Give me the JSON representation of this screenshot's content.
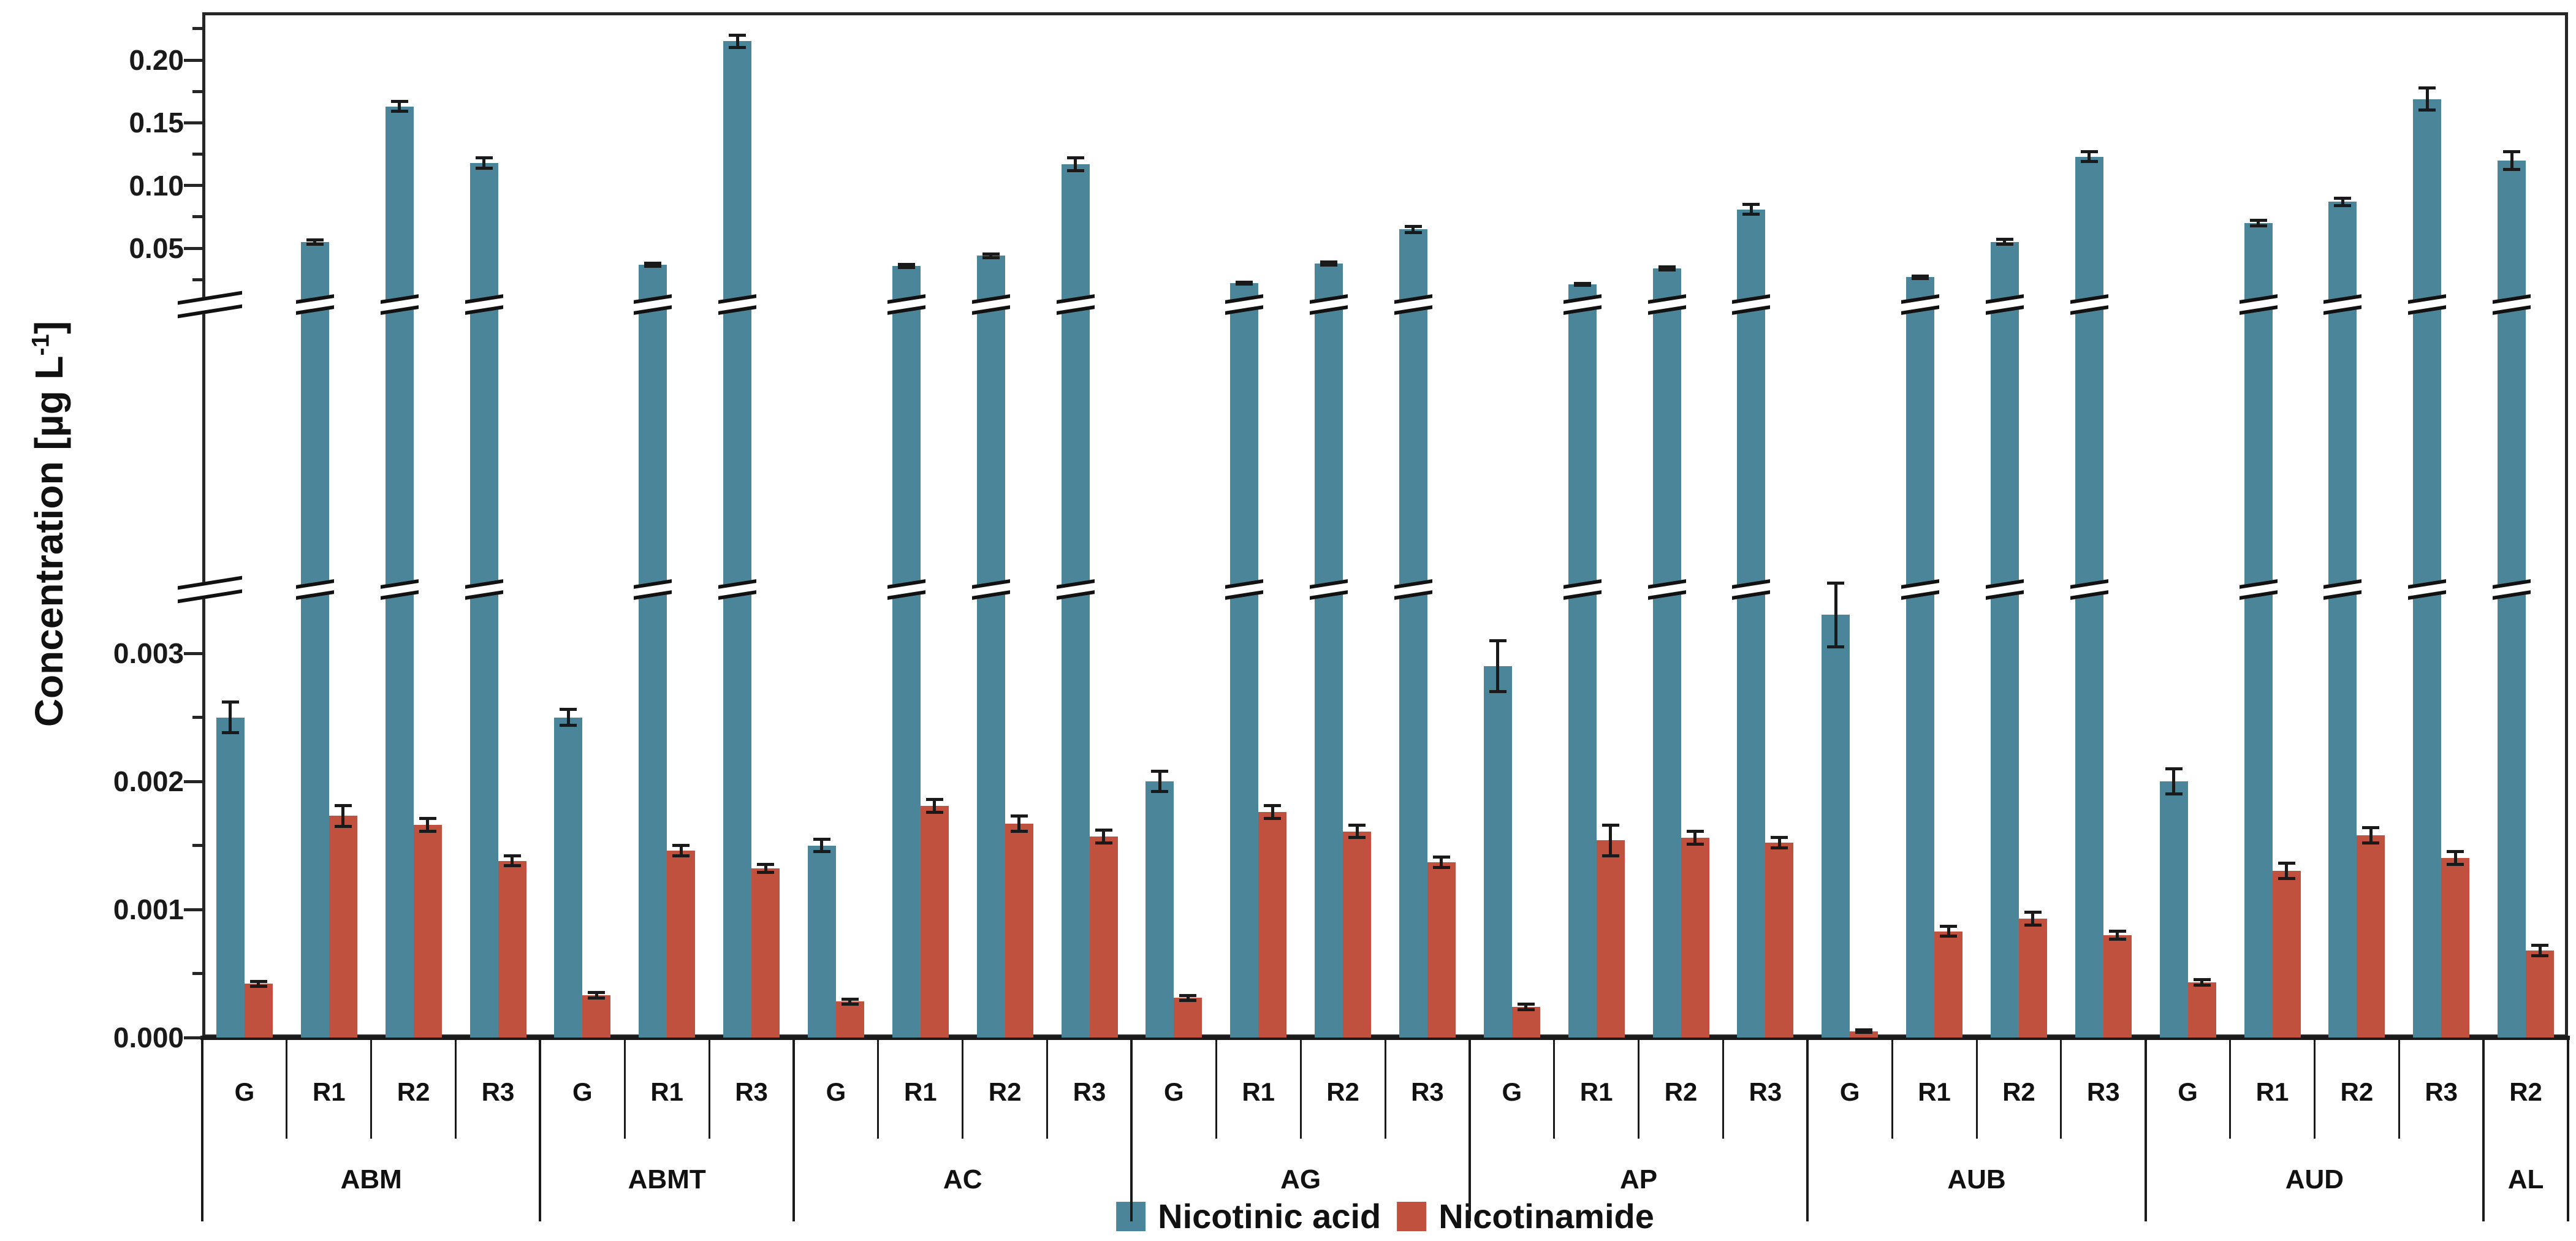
{
  "chart_data": {
    "type": "bar",
    "title": "",
    "ylabel": "Concentration [µg L-1]",
    "y_axis_label_parts": {
      "prefix": "Concentration [µg L",
      "sup": "-1",
      "suffix": "]"
    },
    "legend_position": "bottom-center",
    "grid": false,
    "series": [
      {
        "name": "Nicotinic acid",
        "color": "#4A8599"
      },
      {
        "name": "Nicotinamide",
        "color": "#C0513E"
      }
    ],
    "y_axis_break": {
      "lower_range": [
        0,
        0.0035
      ],
      "upper_range": [
        0.013,
        0.235
      ],
      "lower_ticks": [
        {
          "value": 0.0,
          "label": "0.000"
        },
        {
          "value": 0.001,
          "label": "0.001"
        },
        {
          "value": 0.002,
          "label": "0.002"
        },
        {
          "value": 0.003,
          "label": "0.003"
        }
      ],
      "lower_minor_ticks": [
        0.0005,
        0.0015,
        0.0025
      ],
      "upper_ticks": [
        {
          "value": 0.05,
          "label": "0.05"
        },
        {
          "value": 0.1,
          "label": "0.10"
        },
        {
          "value": 0.15,
          "label": "0.15"
        },
        {
          "value": 0.2,
          "label": "0.20"
        }
      ],
      "upper_minor_ticks": [
        0.025,
        0.075,
        0.125,
        0.175,
        0.225
      ]
    },
    "groups": [
      {
        "name": "ABM",
        "categories": [
          {
            "label": "G",
            "nicotinic_acid": 0.0025,
            "nicotinic_acid_err": 0.00012,
            "nicotinamide": 0.00042,
            "nicotinamide_err": 2e-05
          },
          {
            "label": "R1",
            "nicotinic_acid": 0.055,
            "nicotinic_acid_err": 0.0018,
            "nicotinamide": 0.00173,
            "nicotinamide_err": 8e-05
          },
          {
            "label": "R2",
            "nicotinic_acid": 0.163,
            "nicotinic_acid_err": 0.004,
            "nicotinamide": 0.00166,
            "nicotinamide_err": 5e-05
          },
          {
            "label": "R3",
            "nicotinic_acid": 0.118,
            "nicotinic_acid_err": 0.004,
            "nicotinamide": 0.00138,
            "nicotinamide_err": 4e-05
          }
        ]
      },
      {
        "name": "ABMT",
        "categories": [
          {
            "label": "G",
            "nicotinic_acid": 0.0025,
            "nicotinic_acid_err": 6e-05,
            "nicotinamide": 0.00033,
            "nicotinamide_err": 2e-05
          },
          {
            "label": "R1",
            "nicotinic_acid": 0.037,
            "nicotinic_acid_err": 0.0012,
            "nicotinamide": 0.00146,
            "nicotinamide_err": 4e-05
          },
          {
            "label": "R3",
            "nicotinic_acid": 0.215,
            "nicotinic_acid_err": 0.005,
            "nicotinamide": 0.00132,
            "nicotinamide_err": 3e-05
          }
        ]
      },
      {
        "name": "AC",
        "categories": [
          {
            "label": "G",
            "nicotinic_acid": 0.0015,
            "nicotinic_acid_err": 5e-05,
            "nicotinamide": 0.00028,
            "nicotinamide_err": 2e-05
          },
          {
            "label": "R1",
            "nicotinic_acid": 0.036,
            "nicotinic_acid_err": 0.0012,
            "nicotinamide": 0.00181,
            "nicotinamide_err": 5e-05
          },
          {
            "label": "R2",
            "nicotinic_acid": 0.044,
            "nicotinic_acid_err": 0.0015,
            "nicotinamide": 0.00167,
            "nicotinamide_err": 6e-05
          },
          {
            "label": "R3",
            "nicotinic_acid": 0.117,
            "nicotinic_acid_err": 0.005,
            "nicotinamide": 0.00157,
            "nicotinamide_err": 5e-05
          }
        ]
      },
      {
        "name": "AG",
        "categories": [
          {
            "label": "G",
            "nicotinic_acid": 0.002,
            "nicotinic_acid_err": 8e-05,
            "nicotinamide": 0.00031,
            "nicotinamide_err": 2e-05
          },
          {
            "label": "R1",
            "nicotinic_acid": 0.022,
            "nicotinic_acid_err": 0.0008,
            "nicotinamide": 0.00176,
            "nicotinamide_err": 5e-05
          },
          {
            "label": "R2",
            "nicotinic_acid": 0.038,
            "nicotinic_acid_err": 0.0012,
            "nicotinamide": 0.00161,
            "nicotinamide_err": 5e-05
          },
          {
            "label": "R3",
            "nicotinic_acid": 0.065,
            "nicotinic_acid_err": 0.0025,
            "nicotinamide": 0.00137,
            "nicotinamide_err": 4e-05
          }
        ]
      },
      {
        "name": "AP",
        "categories": [
          {
            "label": "G",
            "nicotinic_acid": 0.0029,
            "nicotinic_acid_err": 0.0002,
            "nicotinamide": 0.00024,
            "nicotinamide_err": 2e-05
          },
          {
            "label": "R1",
            "nicotinic_acid": 0.021,
            "nicotinic_acid_err": 0.0008,
            "nicotinamide": 0.00154,
            "nicotinamide_err": 0.00012
          },
          {
            "label": "R2",
            "nicotinic_acid": 0.034,
            "nicotinic_acid_err": 0.0012,
            "nicotinamide": 0.00156,
            "nicotinamide_err": 5e-05
          },
          {
            "label": "R3",
            "nicotinic_acid": 0.081,
            "nicotinic_acid_err": 0.004,
            "nicotinamide": 0.00152,
            "nicotinamide_err": 4e-05
          }
        ]
      },
      {
        "name": "AUB",
        "categories": [
          {
            "label": "G",
            "nicotinic_acid": 0.0033,
            "nicotinic_acid_err": 0.00025,
            "nicotinamide": 5e-05,
            "nicotinamide_err": 1e-05
          },
          {
            "label": "R1",
            "nicotinic_acid": 0.027,
            "nicotinic_acid_err": 0.001,
            "nicotinamide": 0.00083,
            "nicotinamide_err": 4e-05
          },
          {
            "label": "R2",
            "nicotinic_acid": 0.055,
            "nicotinic_acid_err": 0.002,
            "nicotinamide": 0.00093,
            "nicotinamide_err": 5e-05
          },
          {
            "label": "R3",
            "nicotinic_acid": 0.123,
            "nicotinic_acid_err": 0.004,
            "nicotinamide": 0.0008,
            "nicotinamide_err": 3e-05
          }
        ]
      },
      {
        "name": "AUD",
        "categories": [
          {
            "label": "G",
            "nicotinic_acid": 0.002,
            "nicotinic_acid_err": 0.0001,
            "nicotinamide": 0.00043,
            "nicotinamide_err": 2e-05
          },
          {
            "label": "R1",
            "nicotinic_acid": 0.07,
            "nicotinic_acid_err": 0.002,
            "nicotinamide": 0.0013,
            "nicotinamide_err": 6e-05
          },
          {
            "label": "R2",
            "nicotinic_acid": 0.087,
            "nicotinic_acid_err": 0.003,
            "nicotinamide": 0.00158,
            "nicotinamide_err": 6e-05
          },
          {
            "label": "R3",
            "nicotinic_acid": 0.169,
            "nicotinic_acid_err": 0.009,
            "nicotinamide": 0.0014,
            "nicotinamide_err": 5e-05
          }
        ]
      },
      {
        "name": "AL",
        "categories": [
          {
            "label": "R2",
            "nicotinic_acid": 0.12,
            "nicotinic_acid_err": 0.007,
            "nicotinamide": 0.00068,
            "nicotinamide_err": 4e-05
          }
        ]
      }
    ]
  }
}
